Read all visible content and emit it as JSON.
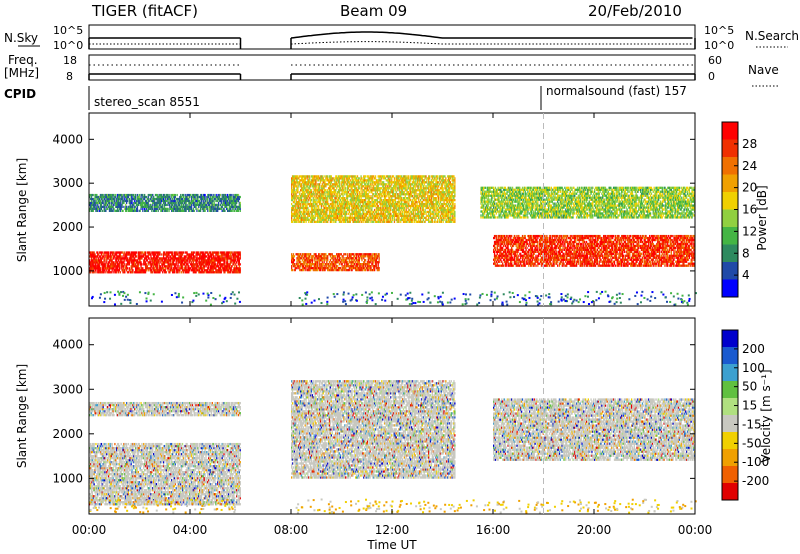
{
  "header": {
    "station": "TIGER (fitACF)",
    "beam": "Beam 09",
    "date": "20/Feb/2010"
  },
  "panel_labels": {
    "nsky": "N.Sky",
    "nsearch": "N.Search",
    "freq": "Freq.",
    "mhz": "[MHz]",
    "nave": "Nave",
    "cpid": "CPID",
    "tick_1e5_left": "10^5",
    "tick_1e0_left": "10^0",
    "tick_1e5_right": "10^5",
    "tick_1e0_right": "10^0",
    "freq_18": "18",
    "freq_8": "8",
    "nave_60": "60",
    "nave_0": "0"
  },
  "cpid": {
    "left": "stereo_scan 8551",
    "right": "normalsound (fast) 157"
  },
  "colors": {
    "power_scale": [
      "#0000ff",
      "#204aa8",
      "#2e8a5f",
      "#44b544",
      "#90d040",
      "#f0d000",
      "#f0a000",
      "#f07000",
      "#f03000",
      "#ff0000"
    ],
    "velocity_scale": [
      "#0000cc",
      "#1a5ad0",
      "#3ca0d0",
      "#60c040",
      "#b0e080",
      "#c8c8c0",
      "#f0d000",
      "#f0a000",
      "#f06000",
      "#e00000"
    ]
  },
  "chart_data": [
    {
      "type": "heatmap",
      "title": "Power",
      "xlabel": "",
      "ylabel": "Slant Range [km]",
      "xlim": [
        "00:00",
        "00:00"
      ],
      "ylim": [
        200,
        4600
      ],
      "yticks": [
        1000,
        2000,
        3000,
        4000
      ],
      "colorbar": {
        "label": "Power [dB]",
        "ticks": [
          4,
          8,
          12,
          16,
          20,
          24,
          28
        ],
        "range": [
          0,
          32
        ]
      },
      "echo_bands": [
        {
          "t_start_h": 0.0,
          "t_end_h": 6.0,
          "range_km": [
            950,
            1450
          ],
          "power_db": 30
        },
        {
          "t_start_h": 0.0,
          "t_end_h": 6.0,
          "range_km": [
            2350,
            2750
          ],
          "power_db": 8
        },
        {
          "t_start_h": 8.0,
          "t_end_h": 11.5,
          "range_km": [
            1000,
            1400
          ],
          "power_db": 26
        },
        {
          "t_start_h": 8.0,
          "t_end_h": 14.5,
          "range_km": [
            2100,
            3200
          ],
          "power_db": 18
        },
        {
          "t_start_h": 16.0,
          "t_end_h": 24.0,
          "range_km": [
            1100,
            1800
          ],
          "power_db": 28
        },
        {
          "t_start_h": 15.5,
          "t_end_h": 24.0,
          "range_km": [
            2200,
            2900
          ],
          "power_db": 14
        }
      ]
    },
    {
      "type": "heatmap",
      "title": "Velocity",
      "xlabel": "Time UT",
      "ylabel": "Slant Range [km]",
      "xlim": [
        "00:00",
        "00:00"
      ],
      "xticks": [
        "00:00",
        "04:00",
        "08:00",
        "12:00",
        "16:00",
        "20:00",
        "00:00"
      ],
      "ylim": [
        200,
        4600
      ],
      "yticks": [
        1000,
        2000,
        3000,
        4000
      ],
      "colorbar": {
        "label": "Velocity [m s⁻¹]",
        "ticks": [
          200,
          100,
          50,
          15,
          -15,
          -50,
          -100,
          -200
        ],
        "range": [
          -250,
          250
        ]
      },
      "echo_bands": [
        {
          "t_start_h": 0.0,
          "t_end_h": 6.0,
          "range_km": [
            400,
            1800
          ],
          "velocity": 0
        },
        {
          "t_start_h": 0.0,
          "t_end_h": 6.0,
          "range_km": [
            2400,
            2700
          ],
          "velocity": 0
        },
        {
          "t_start_h": 8.0,
          "t_end_h": 14.5,
          "range_km": [
            1000,
            3200
          ],
          "velocity": 0
        },
        {
          "t_start_h": 16.0,
          "t_end_h": 24.0,
          "range_km": [
            1400,
            2800
          ],
          "velocity": 0
        }
      ]
    }
  ],
  "gap_hours": [
    6.0,
    8.0
  ],
  "cpid_change_hour": 18.0
}
